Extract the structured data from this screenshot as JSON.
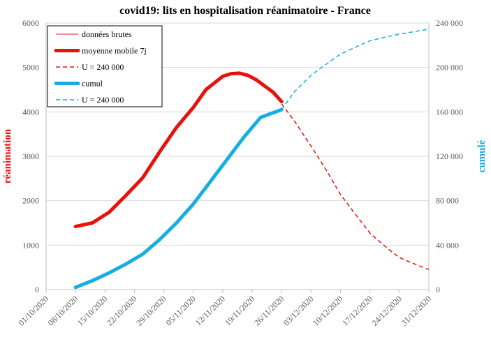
{
  "chart_data": {
    "type": "line",
    "title": "covid19: lits en hospitalisation réanimatoire - France",
    "ylabel_left": "réanimation",
    "ylabel_right": "cumulé",
    "x_ticks": [
      "01/10/2020",
      "08/10/2020",
      "15/10/2020",
      "22/10/2020",
      "29/10/2020",
      "05/11/2020",
      "12/11/2020",
      "19/11/2020",
      "26/11/2020",
      "03/12/2020",
      "10/12/2020",
      "17/12/2020",
      "24/12/2020",
      "31/12/2020"
    ],
    "xlim": [
      "2020-10-01",
      "2020-12-31"
    ],
    "ylim_left": [
      0,
      6000
    ],
    "yticks_left": [
      "0",
      "1000",
      "2000",
      "3000",
      "4000",
      "5000",
      "6000"
    ],
    "ylim_right": [
      0,
      240000
    ],
    "yticks_right": [
      "0",
      "40 000",
      "80 000",
      "120 000",
      "160 000",
      "200 000",
      "240 000"
    ],
    "grid": "horizontal",
    "legend_position": "top-left",
    "colors": {
      "red": "#e8120c",
      "blue": "#16aee0",
      "grid": "#d9d9d9",
      "axis": "#bfbfbf",
      "tick_text": "#595959"
    },
    "series": [
      {
        "name": "données brutes",
        "axis": "left",
        "style": "thin",
        "color": "#e8120c",
        "x": [
          "2020-10-08",
          "2020-10-12",
          "2020-10-16",
          "2020-10-20",
          "2020-10-24",
          "2020-10-28",
          "2020-11-01",
          "2020-11-05",
          "2020-11-08",
          "2020-11-12",
          "2020-11-14",
          "2020-11-16",
          "2020-11-18",
          "2020-11-20",
          "2020-11-22",
          "2020-11-24",
          "2020-11-26"
        ],
        "y": [
          1420,
          1510,
          1760,
          2150,
          2540,
          3120,
          3660,
          4100,
          4520,
          4810,
          4870,
          4880,
          4840,
          4740,
          4600,
          4450,
          4230
        ]
      },
      {
        "name": "moyenne mobile 7j",
        "axis": "left",
        "style": "thick",
        "color": "#e8120c",
        "x": [
          "2020-10-08",
          "2020-10-12",
          "2020-10-16",
          "2020-10-20",
          "2020-10-24",
          "2020-10-28",
          "2020-11-01",
          "2020-11-05",
          "2020-11-08",
          "2020-11-12",
          "2020-11-14",
          "2020-11-16",
          "2020-11-18",
          "2020-11-20",
          "2020-11-22",
          "2020-11-24",
          "2020-11-26"
        ],
        "y": [
          1420,
          1500,
          1740,
          2120,
          2520,
          3100,
          3650,
          4100,
          4500,
          4800,
          4860,
          4870,
          4820,
          4720,
          4580,
          4440,
          4230
        ]
      },
      {
        "name": "U = 240 000",
        "axis": "left",
        "style": "dashed",
        "color": "#e8120c",
        "x": [
          "2020-11-26",
          "2020-11-29",
          "2020-12-03",
          "2020-12-07",
          "2020-12-10",
          "2020-12-14",
          "2020-12-17",
          "2020-12-21",
          "2020-12-24",
          "2020-12-28",
          "2020-12-31"
        ],
        "y": [
          4180,
          3800,
          3230,
          2630,
          2140,
          1640,
          1270,
          940,
          720,
          560,
          450
        ]
      },
      {
        "name": "cumul",
        "axis": "right",
        "style": "thick",
        "color": "#16aee0",
        "x": [
          "2020-10-08",
          "2020-10-12",
          "2020-10-16",
          "2020-10-20",
          "2020-10-24",
          "2020-10-28",
          "2020-11-01",
          "2020-11-05",
          "2020-11-09",
          "2020-11-13",
          "2020-11-17",
          "2020-11-21",
          "2020-11-26"
        ],
        "y": [
          2000,
          8000,
          15000,
          23000,
          32000,
          45000,
          60000,
          77000,
          97000,
          117000,
          137000,
          155000,
          162000
        ]
      },
      {
        "name": "U = 240 000",
        "axis": "right",
        "style": "dashed",
        "color": "#16aee0",
        "x": [
          "2020-11-26",
          "2020-11-29",
          "2020-12-03",
          "2020-12-07",
          "2020-12-10",
          "2020-12-14",
          "2020-12-17",
          "2020-12-21",
          "2020-12-24",
          "2020-12-28",
          "2020-12-31"
        ],
        "y": [
          162000,
          178000,
          193000,
          204000,
          212000,
          219000,
          224000,
          227600,
          230000,
          232500,
          234500
        ]
      }
    ]
  }
}
